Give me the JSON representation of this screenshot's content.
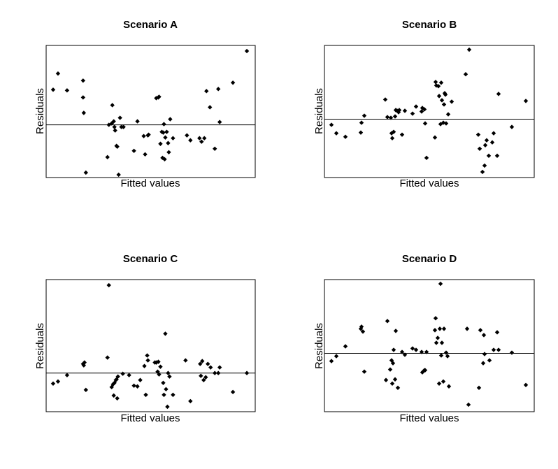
{
  "figure": {
    "background": "#ffffff",
    "point_color": "#000000",
    "line_color": "#000000"
  },
  "chart_data": [
    {
      "type": "scatter",
      "title": "Scenario A",
      "xlabel": "Fitted values",
      "ylabel": "Residuals",
      "xlim": [
        0,
        300
      ],
      "ylim": [
        -75,
        113
      ],
      "hline": 0,
      "grid": false,
      "x": [
        10,
        17,
        30,
        53,
        53,
        54,
        57,
        88,
        90,
        94,
        95,
        97,
        98,
        99,
        101,
        102,
        104,
        106,
        108,
        111,
        126,
        131,
        140,
        142,
        146,
        147,
        158,
        161,
        162,
        164,
        166,
        167,
        168,
        169,
        170,
        171,
        173,
        175,
        176,
        178,
        182,
        202,
        207,
        220,
        223,
        227,
        230,
        235,
        242,
        247,
        249,
        268,
        288
      ],
      "y": [
        50,
        73,
        49,
        63,
        39,
        17,
        -68,
        -46,
        0,
        2,
        28,
        5,
        -3,
        -8,
        -30,
        -31,
        -71,
        10,
        -3,
        -3,
        -37,
        5,
        -16,
        -42,
        -15,
        -14,
        38,
        39,
        40,
        -27,
        -10,
        -47,
        -11,
        1,
        -49,
        -18,
        -10,
        -26,
        -39,
        8,
        -19,
        -15,
        -22,
        -19,
        -24,
        -19,
        48,
        25,
        -34,
        51,
        4,
        60,
        105
      ]
    },
    {
      "type": "scatter",
      "title": "Scenario B",
      "xlabel": "Fitted values",
      "ylabel": "Residuals",
      "xlim": [
        0,
        300
      ],
      "ylim": [
        -83,
        105
      ],
      "hline": 0,
      "grid": false,
      "x": [
        10,
        17,
        30,
        52,
        53,
        57,
        87,
        90,
        95,
        96,
        97,
        99,
        101,
        102,
        104,
        106,
        107,
        111,
        115,
        126,
        131,
        139,
        140,
        143,
        144,
        146,
        158,
        159,
        160,
        163,
        164,
        166,
        167,
        168,
        170,
        171,
        172,
        173,
        174,
        177,
        182,
        202,
        207,
        220,
        222,
        226,
        229,
        230,
        232,
        235,
        240,
        242,
        247,
        249,
        268,
        288
      ],
      "y": [
        -8,
        -20,
        -25,
        -19,
        -5,
        5,
        28,
        3,
        2,
        -20,
        -27,
        -18,
        4,
        13,
        12,
        10,
        13,
        -22,
        12,
        8,
        18,
        11,
        16,
        14,
        -6,
        -55,
        -26,
        53,
        48,
        47,
        33,
        -7,
        52,
        27,
        -5,
        21,
        37,
        35,
        -6,
        7,
        25,
        64,
        99,
        -22,
        -42,
        -75,
        -66,
        -37,
        -30,
        -52,
        -33,
        -20,
        -52,
        36,
        -11,
        26
      ]
    },
    {
      "type": "scatter",
      "title": "Scenario C",
      "xlabel": "Fitted values",
      "ylabel": "Residuals",
      "xlim": [
        0,
        300
      ],
      "ylim": [
        -55,
        133
      ],
      "hline": 0,
      "grid": false,
      "x": [
        10,
        17,
        30,
        53,
        54,
        55,
        57,
        88,
        90,
        94,
        96,
        97,
        98,
        100,
        101,
        102,
        103,
        110,
        119,
        126,
        131,
        135,
        141,
        143,
        145,
        146,
        156,
        158,
        160,
        161,
        162,
        164,
        168,
        169,
        171,
        172,
        174,
        175,
        177,
        182,
        200,
        207,
        221,
        222,
        224,
        226,
        229,
        232,
        236,
        242,
        247,
        249,
        268,
        288
      ],
      "y": [
        -15,
        -12,
        -3,
        13,
        11,
        15,
        -24,
        22,
        125,
        -20,
        -16,
        -32,
        -14,
        -10,
        -9,
        -36,
        -5,
        -1,
        -3,
        -18,
        -19,
        -10,
        10,
        -31,
        25,
        18,
        15,
        15,
        2,
        16,
        -2,
        9,
        -14,
        -31,
        56,
        -23,
        -48,
        0,
        -5,
        -31,
        18,
        -40,
        13,
        -4,
        17,
        -10,
        -6,
        13,
        8,
        0,
        0,
        8,
        -27,
        0
      ]
    },
    {
      "type": "scatter",
      "title": "Scenario D",
      "xlabel": "Fitted values",
      "ylabel": "Residuals",
      "xlim": [
        0,
        300
      ],
      "ylim": [
        -83,
        105
      ],
      "hline": 0,
      "grid": false,
      "x": [
        10,
        17,
        30,
        52,
        53,
        55,
        57,
        88,
        90,
        94,
        96,
        97,
        98,
        99,
        101,
        102,
        105,
        111,
        115,
        126,
        131,
        139,
        140,
        143,
        144,
        146,
        158,
        159,
        160,
        162,
        164,
        165,
        166,
        167,
        168,
        170,
        171,
        174,
        176,
        178,
        204,
        206,
        221,
        223,
        227,
        228,
        229,
        236,
        242,
        247,
        249,
        268,
        288
      ],
      "y": [
        -11,
        -4,
        10,
        35,
        38,
        31,
        -26,
        -38,
        46,
        -23,
        -10,
        -43,
        -14,
        5,
        -37,
        32,
        -49,
        2,
        -2,
        7,
        5,
        2,
        -27,
        -24,
        -24,
        2,
        33,
        50,
        15,
        22,
        -43,
        35,
        99,
        -3,
        15,
        -40,
        35,
        1,
        -4,
        -47,
        35,
        -73,
        -49,
        33,
        -14,
        26,
        -1,
        -10,
        5,
        30,
        5,
        1,
        -45
      ]
    }
  ]
}
